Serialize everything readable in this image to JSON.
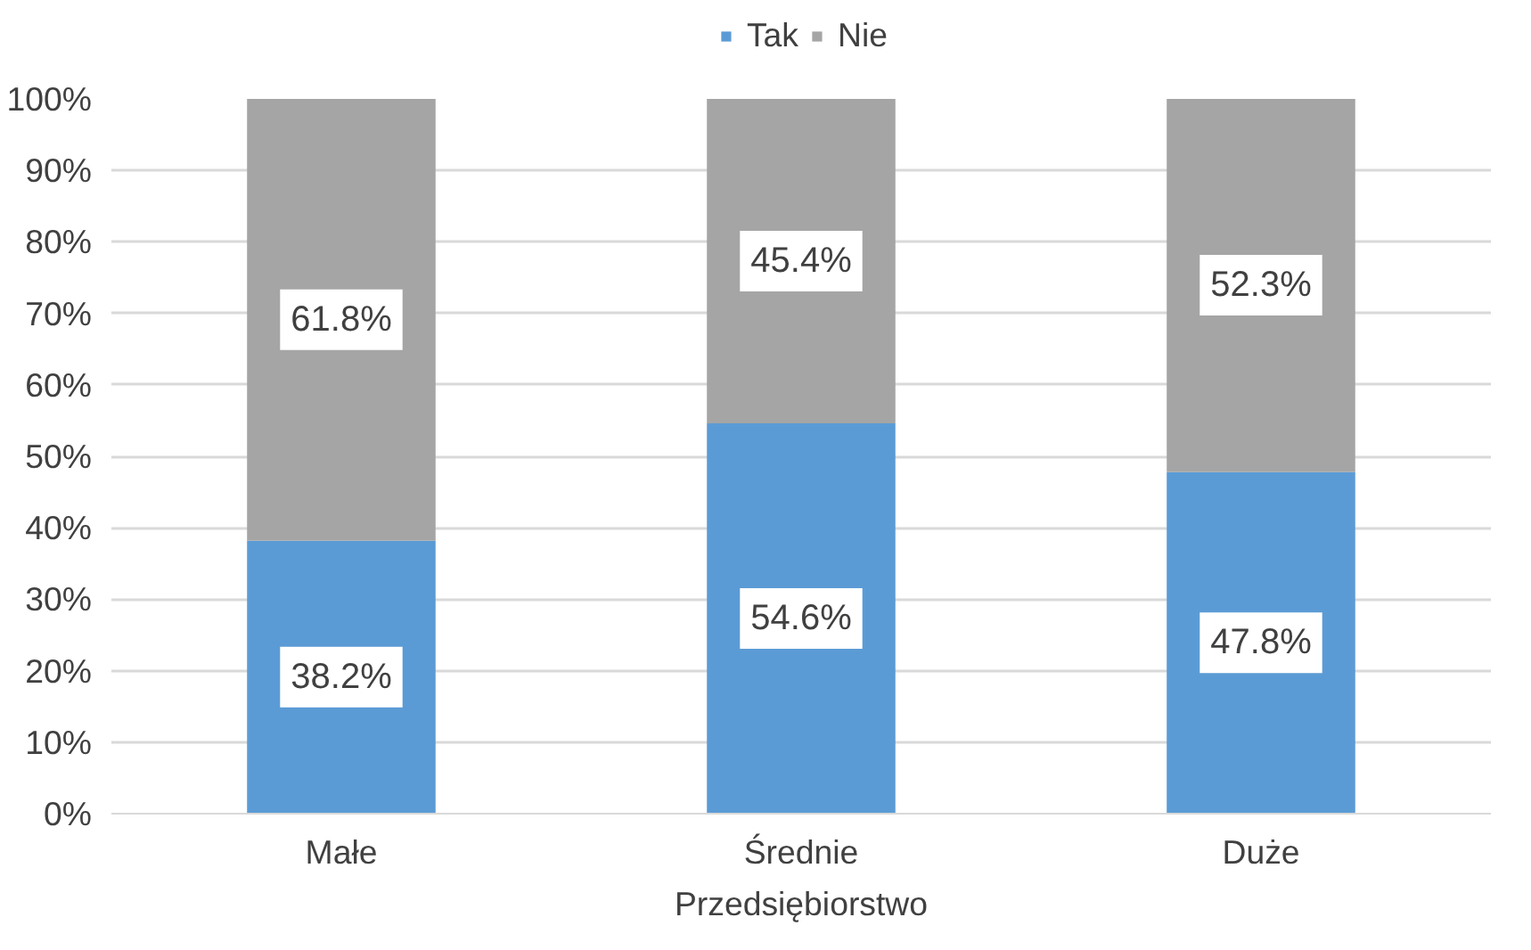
{
  "chart_data": {
    "type": "bar",
    "stacked": true,
    "xlabel": "Przedsiębiorstwo",
    "categories": [
      "Małe",
      "Średnie",
      "Duże"
    ],
    "series": [
      {
        "name": "Tak",
        "color": "#5b9bd5",
        "values": [
          38.2,
          54.6,
          47.8
        ],
        "value_labels": [
          "38.2%",
          "54.6%",
          "47.8%"
        ]
      },
      {
        "name": "Nie",
        "color": "#a5a5a5",
        "values": [
          61.8,
          45.4,
          52.3
        ],
        "value_labels": [
          "61.8%",
          "45.4%",
          "52.3%"
        ]
      }
    ],
    "ylim": [
      0,
      100
    ],
    "yticks": [
      {
        "value": 0,
        "label": "0%"
      },
      {
        "value": 10,
        "label": "10%"
      },
      {
        "value": 20,
        "label": "20%"
      },
      {
        "value": 30,
        "label": "30%"
      },
      {
        "value": 40,
        "label": "40%"
      },
      {
        "value": 50,
        "label": "50%"
      },
      {
        "value": 60,
        "label": "60%"
      },
      {
        "value": 70,
        "label": "70%"
      },
      {
        "value": 80,
        "label": "80%"
      },
      {
        "value": 90,
        "label": "90%"
      },
      {
        "value": 100,
        "label": "100%"
      }
    ],
    "grid": "y",
    "legend": "top"
  }
}
